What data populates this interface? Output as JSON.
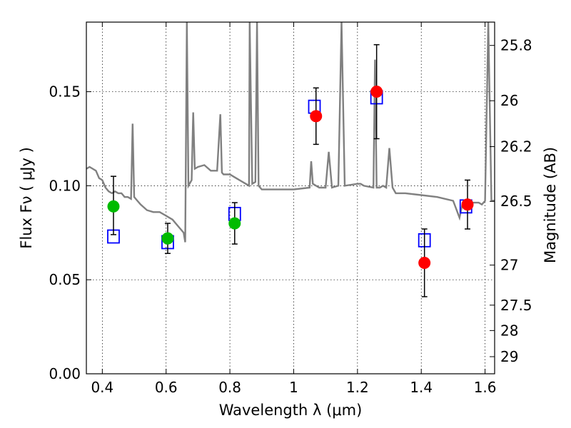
{
  "chart_data": {
    "type": "scatter",
    "xlabel": "Wavelength  λ (μm)",
    "ylabel": "Flux  Fν  ( μJy )",
    "y2label": "Magnitude (AB)",
    "xlim": [
      0.35,
      1.63
    ],
    "ylim": [
      0.0,
      0.187
    ],
    "grid": true,
    "x_ticks": [
      0.4,
      0.6,
      0.8,
      1.0,
      1.2,
      1.4,
      1.6
    ],
    "x_tick_labels": [
      "0.4",
      "0.6",
      "0.8",
      "1",
      "1.2",
      "1.4",
      "1.6"
    ],
    "y_ticks": [
      0.0,
      0.05,
      0.1,
      0.15
    ],
    "y_tick_labels": [
      "0.00",
      "0.05",
      "0.10",
      "0.15"
    ],
    "y2_ticks": [
      {
        "label": "25.8",
        "flux": 0.1746
      },
      {
        "label": "26",
        "flux": 0.1452
      },
      {
        "label": "26.2",
        "flux": 0.1208
      },
      {
        "label": "26.5",
        "flux": 0.0917
      },
      {
        "label": "27",
        "flux": 0.0578
      },
      {
        "label": "27.5",
        "flux": 0.0365
      },
      {
        "label": "28",
        "flux": 0.023
      },
      {
        "label": "29",
        "flux": 0.0091
      }
    ],
    "colors": {
      "model": "#808080",
      "model_points": "#0000ff",
      "green": "#00bb00",
      "red": "#ff0000",
      "errorbar": "#000000"
    },
    "series": [
      {
        "type": "line",
        "x": [
          0.35,
          0.36,
          0.37,
          0.38,
          0.39,
          0.4,
          0.41,
          0.42,
          0.43,
          0.44,
          0.45,
          0.46,
          0.47,
          0.48,
          0.49,
          0.495,
          0.5,
          0.51,
          0.52,
          0.54,
          0.56,
          0.58,
          0.6,
          0.62,
          0.64,
          0.65,
          0.655,
          0.66,
          0.665,
          0.67,
          0.68,
          0.685,
          0.69,
          0.7,
          0.72,
          0.74,
          0.76,
          0.77,
          0.775,
          0.78,
          0.8,
          0.82,
          0.84,
          0.85,
          0.86,
          0.862,
          0.87,
          0.88,
          0.885,
          0.89,
          0.9,
          0.95,
          1.0,
          1.05,
          1.055,
          1.06,
          1.08,
          1.1,
          1.11,
          1.12,
          1.14,
          1.15,
          1.16,
          1.2,
          1.21,
          1.22,
          1.25,
          1.255,
          1.26,
          1.27,
          1.28,
          1.29,
          1.3,
          1.31,
          1.32,
          1.35,
          1.4,
          1.45,
          1.5,
          1.52,
          1.53,
          1.54,
          1.56,
          1.57,
          1.58,
          1.59,
          1.6,
          1.61,
          1.62,
          1.63
        ],
        "y": [
          0.109,
          0.11,
          0.109,
          0.108,
          0.104,
          0.103,
          0.099,
          0.097,
          0.096,
          0.097,
          0.096,
          0.096,
          0.094,
          0.094,
          0.093,
          0.133,
          0.094,
          0.092,
          0.09,
          0.087,
          0.086,
          0.086,
          0.084,
          0.082,
          0.078,
          0.076,
          0.075,
          0.07,
          0.187,
          0.1,
          0.103,
          0.139,
          0.109,
          0.11,
          0.111,
          0.108,
          0.108,
          0.138,
          0.107,
          0.106,
          0.106,
          0.104,
          0.102,
          0.101,
          0.1,
          0.187,
          0.101,
          0.102,
          0.187,
          0.1,
          0.098,
          0.098,
          0.098,
          0.099,
          0.113,
          0.101,
          0.099,
          0.099,
          0.118,
          0.099,
          0.1,
          0.187,
          0.1,
          0.101,
          0.101,
          0.1,
          0.099,
          0.167,
          0.099,
          0.099,
          0.1,
          0.099,
          0.12,
          0.099,
          0.096,
          0.096,
          0.095,
          0.094,
          0.092,
          0.083,
          0.091,
          0.092,
          0.091,
          0.091,
          0.091,
          0.09,
          0.092,
          0.187,
          0.092,
          0.092
        ]
      },
      {
        "type": "open-square",
        "x": [
          0.435,
          0.605,
          0.815,
          1.065,
          1.26,
          1.41,
          1.54
        ],
        "y": [
          0.073,
          0.07,
          0.085,
          0.142,
          0.147,
          0.071,
          0.089
        ]
      },
      {
        "type": "dot",
        "color": "green",
        "x": [
          0.435,
          0.605,
          0.815
        ],
        "y": [
          0.089,
          0.072,
          0.08
        ],
        "err_low": [
          0.015,
          0.008,
          0.011
        ],
        "err_high": [
          0.016,
          0.008,
          0.011
        ]
      },
      {
        "type": "dot",
        "color": "red",
        "x": [
          1.07,
          1.26,
          1.41,
          1.545
        ],
        "y": [
          0.137,
          0.15,
          0.059,
          0.09
        ],
        "err_low": [
          0.015,
          0.025,
          0.018,
          0.013
        ],
        "err_high": [
          0.015,
          0.025,
          0.018,
          0.013
        ]
      }
    ]
  }
}
